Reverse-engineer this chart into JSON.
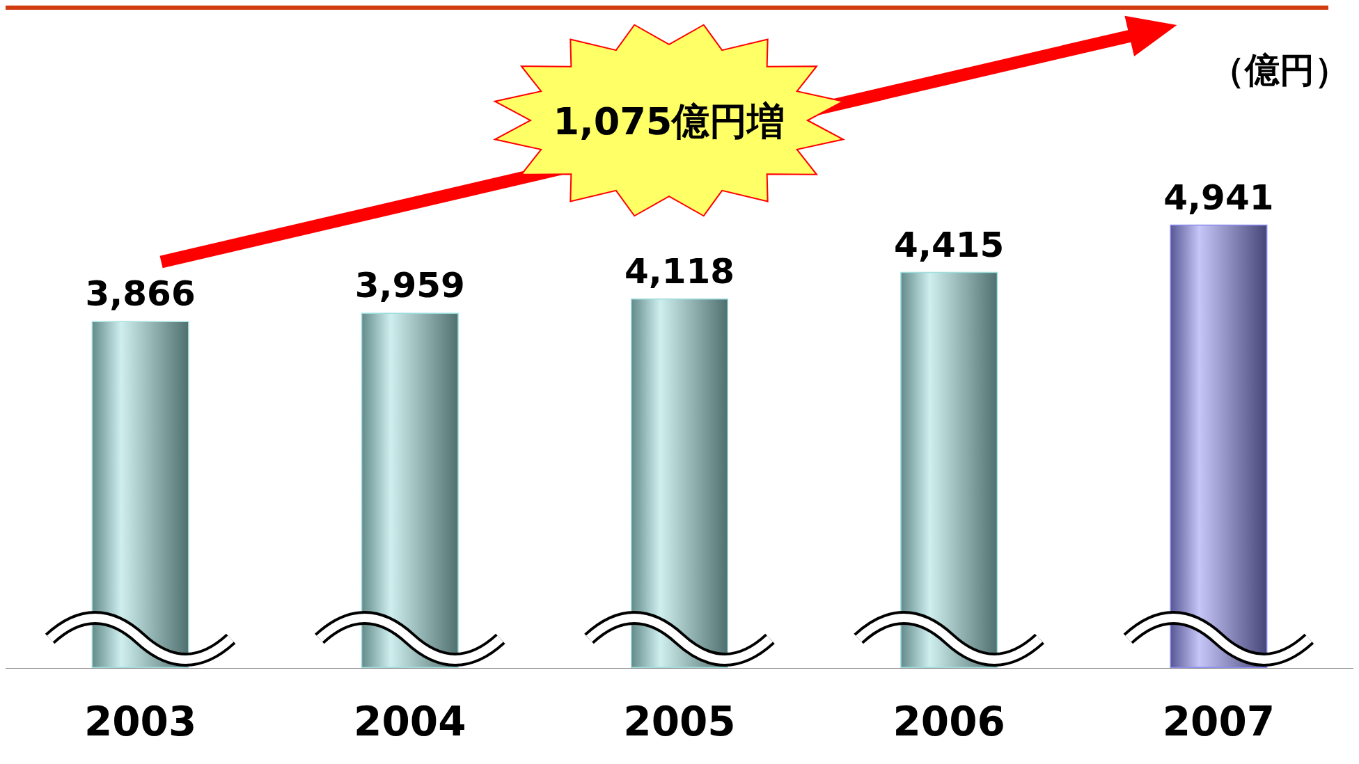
{
  "chart_data": {
    "type": "bar",
    "categories": [
      "2003",
      "2004",
      "2005",
      "2006",
      "2007"
    ],
    "values": [
      3866,
      3959,
      4118,
      4415,
      4941
    ],
    "colors": [
      "#9fdede",
      "#9fdede",
      "#9fdede",
      "#9fdede",
      "#8c8cf0"
    ],
    "value_labels": [
      "3,866",
      "3,959",
      "4,118",
      "4,415",
      "4,941"
    ],
    "tick_labels": "x",
    "annotations": [
      "1,075億円増",
      "（億円）"
    ]
  }
}
